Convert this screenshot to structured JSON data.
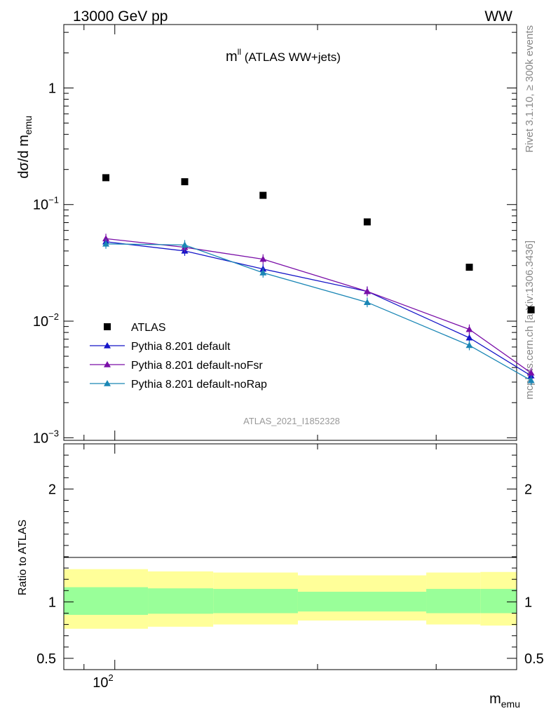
{
  "header": {
    "left": "13000 GeV pp",
    "right": "WW"
  },
  "side": {
    "rivet": "Rivet 3.1.10, ≥ 300k events",
    "mcplots": "mcplots.cern.ch [arXiv:1306.3436]"
  },
  "chart_data": [
    {
      "type": "scatter",
      "title_main": "m",
      "title_sup": "ll",
      "title_rest": " (ATLAS WW+jets)",
      "watermark": "ATLAS_2021_I1852328",
      "ylabel_main": "dσ/d m",
      "ylabel_sub": "emu",
      "yscale": "log",
      "ylim": [
        0.00095,
        3.5
      ],
      "xscale": "log",
      "xlim": [
        84,
        395
      ],
      "y_ticks": [
        {
          "value": 1,
          "label": "1"
        },
        {
          "value": 0.1,
          "label": "10",
          "exp": "−1"
        },
        {
          "value": 0.01,
          "label": "10",
          "exp": "−2"
        },
        {
          "value": 0.001,
          "label": "10",
          "exp": "−3"
        }
      ],
      "series": [
        {
          "name": "ATLAS",
          "color": "#000000",
          "marker": "square",
          "x": [
            97,
            127,
            166,
            237,
            336,
            415
          ],
          "y": [
            0.17,
            0.157,
            0.12,
            0.071,
            0.029,
            0.0125
          ]
        },
        {
          "name": "Pythia 8.201 default",
          "color": "#1515c8",
          "marker": "triangle",
          "x": [
            97,
            127,
            166,
            237,
            336,
            415
          ],
          "y": [
            0.048,
            0.04,
            0.028,
            0.018,
            0.0072,
            0.0034
          ]
        },
        {
          "name": "Pythia 8.201 default-noFsr",
          "color": "#7a0fa8",
          "marker": "triangle",
          "x": [
            97,
            127,
            166,
            237,
            336,
            415
          ],
          "y": [
            0.051,
            0.043,
            0.034,
            0.018,
            0.0085,
            0.0036
          ]
        },
        {
          "name": "Pythia 8.201 default-noRap",
          "color": "#1a86b5",
          "marker": "triangle",
          "x": [
            97,
            127,
            166,
            237,
            336,
            415
          ],
          "y": [
            0.046,
            0.045,
            0.026,
            0.0145,
            0.0062,
            0.0031
          ]
        }
      ]
    },
    {
      "type": "area",
      "ylabel": "Ratio to ATLAS",
      "xlabel_main": "m",
      "xlabel_sub": "emu",
      "ylim": [
        0.4,
        2.4
      ],
      "y_ticks": [
        {
          "value": 2,
          "label": "2"
        },
        {
          "value": 1,
          "label": "1"
        },
        {
          "value": 0.5,
          "label": "0.5"
        }
      ],
      "x_tick_label": {
        "value": 100,
        "label": "10",
        "exp": "2"
      },
      "bands": [
        {
          "x0": 84,
          "x1": 112,
          "stat_lo": 0.885,
          "stat_hi": 1.13,
          "tot_lo": 0.762,
          "tot_hi": 1.29
        },
        {
          "x0": 112,
          "x1": 140,
          "stat_lo": 0.895,
          "stat_hi": 1.12,
          "tot_lo": 0.78,
          "tot_hi": 1.27
        },
        {
          "x0": 140,
          "x1": 187,
          "stat_lo": 0.9,
          "stat_hi": 1.115,
          "tot_lo": 0.8,
          "tot_hi": 1.26
        },
        {
          "x0": 187,
          "x1": 290,
          "stat_lo": 0.915,
          "stat_hi": 1.09,
          "tot_lo": 0.835,
          "tot_hi": 1.235
        },
        {
          "x0": 290,
          "x1": 349,
          "stat_lo": 0.9,
          "stat_hi": 1.115,
          "tot_lo": 0.8,
          "tot_hi": 1.26
        },
        {
          "x0": 349,
          "x1": 395,
          "stat_lo": 0.9,
          "stat_hi": 1.115,
          "tot_lo": 0.79,
          "tot_hi": 1.265
        }
      ]
    }
  ]
}
